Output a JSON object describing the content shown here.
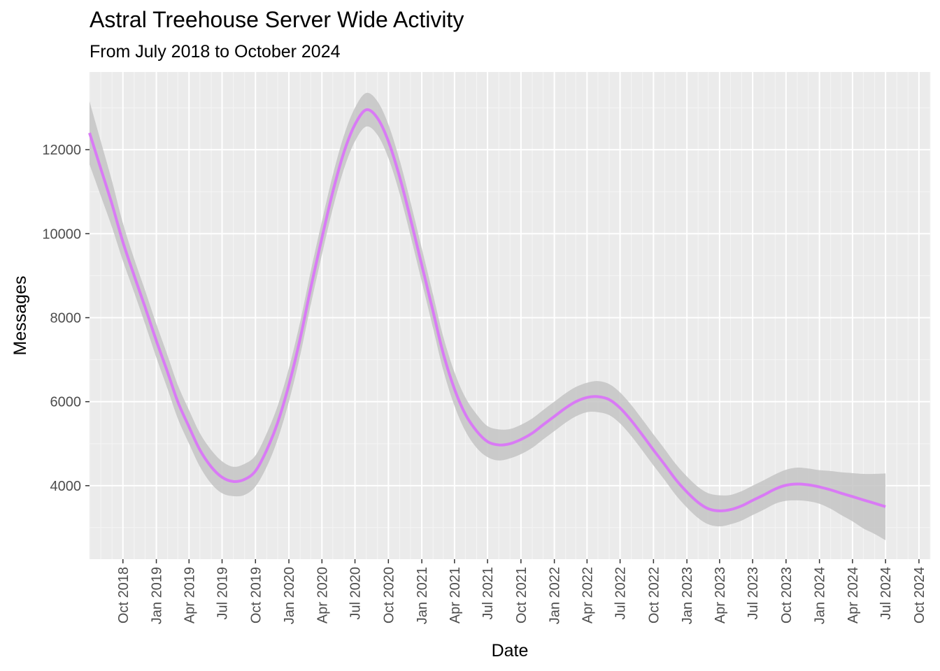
{
  "chart_data": {
    "type": "line",
    "title": "Astral Treehouse Server Wide Activity",
    "subtitle": "From July 2018 to October 2024",
    "xlabel": "Date",
    "ylabel": "Messages",
    "xlim": [
      "2018-07-01",
      "2024-11-01"
    ],
    "ylim": [
      2250,
      13850
    ],
    "grid": true,
    "legend": "none",
    "y_ticks": [
      4000,
      6000,
      8000,
      10000,
      12000
    ],
    "x_ticks": [
      {
        "date": "2018-10-01",
        "label": "Oct 2018"
      },
      {
        "date": "2019-01-01",
        "label": "Jan 2019"
      },
      {
        "date": "2019-04-01",
        "label": "Apr 2019"
      },
      {
        "date": "2019-07-01",
        "label": "Jul 2019"
      },
      {
        "date": "2019-10-01",
        "label": "Oct 2019"
      },
      {
        "date": "2020-01-01",
        "label": "Jan 2020"
      },
      {
        "date": "2020-04-01",
        "label": "Apr 2020"
      },
      {
        "date": "2020-07-01",
        "label": "Jul 2020"
      },
      {
        "date": "2020-10-01",
        "label": "Oct 2020"
      },
      {
        "date": "2021-01-01",
        "label": "Jan 2021"
      },
      {
        "date": "2021-04-01",
        "label": "Apr 2021"
      },
      {
        "date": "2021-07-01",
        "label": "Jul 2021"
      },
      {
        "date": "2021-10-01",
        "label": "Oct 2021"
      },
      {
        "date": "2022-01-01",
        "label": "Jan 2022"
      },
      {
        "date": "2022-04-01",
        "label": "Apr 2022"
      },
      {
        "date": "2022-07-01",
        "label": "Jul 2022"
      },
      {
        "date": "2022-10-01",
        "label": "Oct 2022"
      },
      {
        "date": "2023-01-01",
        "label": "Jan 2023"
      },
      {
        "date": "2023-04-01",
        "label": "Apr 2023"
      },
      {
        "date": "2023-07-01",
        "label": "Jul 2023"
      },
      {
        "date": "2023-10-01",
        "label": "Oct 2023"
      },
      {
        "date": "2024-01-01",
        "label": "Jan 2024"
      },
      {
        "date": "2024-04-01",
        "label": "Apr 2024"
      },
      {
        "date": "2024-07-01",
        "label": "Jul 2024"
      },
      {
        "date": "2024-10-01",
        "label": "Oct 2024"
      }
    ],
    "series": [
      {
        "color": "#d97af5",
        "band_color": "#c4c4c4",
        "points": [
          {
            "date": "2018-07-01",
            "y": 12400,
            "lo": 11650,
            "hi": 13150
          },
          {
            "date": "2018-08-01",
            "y": 11550,
            "lo": 10900,
            "hi": 12200
          },
          {
            "date": "2018-09-01",
            "y": 10700,
            "lo": 10150,
            "hi": 11250
          },
          {
            "date": "2018-10-01",
            "y": 9800,
            "lo": 9350,
            "hi": 10250
          },
          {
            "date": "2018-11-01",
            "y": 9000,
            "lo": 8600,
            "hi": 9400
          },
          {
            "date": "2018-12-01",
            "y": 8250,
            "lo": 7850,
            "hi": 8650
          },
          {
            "date": "2019-01-01",
            "y": 7450,
            "lo": 7050,
            "hi": 7850
          },
          {
            "date": "2019-02-01",
            "y": 6700,
            "lo": 6300,
            "hi": 7100
          },
          {
            "date": "2019-03-01",
            "y": 6000,
            "lo": 5600,
            "hi": 6400
          },
          {
            "date": "2019-04-01",
            "y": 5400,
            "lo": 5000,
            "hi": 5800
          },
          {
            "date": "2019-05-01",
            "y": 4850,
            "lo": 4450,
            "hi": 5250
          },
          {
            "date": "2019-06-01",
            "y": 4450,
            "lo": 4050,
            "hi": 4850
          },
          {
            "date": "2019-07-01",
            "y": 4200,
            "lo": 3820,
            "hi": 4580
          },
          {
            "date": "2019-08-01",
            "y": 4100,
            "lo": 3750,
            "hi": 4450
          },
          {
            "date": "2019-09-01",
            "y": 4150,
            "lo": 3780,
            "hi": 4520
          },
          {
            "date": "2019-10-01",
            "y": 4350,
            "lo": 3980,
            "hi": 4720
          },
          {
            "date": "2019-11-01",
            "y": 4850,
            "lo": 4450,
            "hi": 5250
          },
          {
            "date": "2019-12-01",
            "y": 5500,
            "lo": 5100,
            "hi": 5900
          },
          {
            "date": "2020-01-01",
            "y": 6400,
            "lo": 6000,
            "hi": 6800
          },
          {
            "date": "2020-02-01",
            "y": 7500,
            "lo": 7100,
            "hi": 7900
          },
          {
            "date": "2020-03-01",
            "y": 8700,
            "lo": 8300,
            "hi": 9100
          },
          {
            "date": "2020-04-01",
            "y": 9900,
            "lo": 9500,
            "hi": 10300
          },
          {
            "date": "2020-05-01",
            "y": 11000,
            "lo": 10600,
            "hi": 11400
          },
          {
            "date": "2020-06-01",
            "y": 11950,
            "lo": 11550,
            "hi": 12350
          },
          {
            "date": "2020-07-01",
            "y": 12600,
            "lo": 12200,
            "hi": 13000
          },
          {
            "date": "2020-08-01",
            "y": 12950,
            "lo": 12550,
            "hi": 13350
          },
          {
            "date": "2020-09-01",
            "y": 12750,
            "lo": 12350,
            "hi": 13150
          },
          {
            "date": "2020-10-01",
            "y": 12200,
            "lo": 11800,
            "hi": 12600
          },
          {
            "date": "2020-11-01",
            "y": 11350,
            "lo": 10950,
            "hi": 11750
          },
          {
            "date": "2020-12-01",
            "y": 10350,
            "lo": 9950,
            "hi": 10750
          },
          {
            "date": "2021-01-01",
            "y": 9250,
            "lo": 8850,
            "hi": 9650
          },
          {
            "date": "2021-02-01",
            "y": 8150,
            "lo": 7750,
            "hi": 8550
          },
          {
            "date": "2021-03-01",
            "y": 7150,
            "lo": 6750,
            "hi": 7550
          },
          {
            "date": "2021-04-01",
            "y": 6300,
            "lo": 5900,
            "hi": 6700
          },
          {
            "date": "2021-05-01",
            "y": 5700,
            "lo": 5300,
            "hi": 6100
          },
          {
            "date": "2021-06-01",
            "y": 5300,
            "lo": 4900,
            "hi": 5700
          },
          {
            "date": "2021-07-01",
            "y": 5050,
            "lo": 4680,
            "hi": 5420
          },
          {
            "date": "2021-08-01",
            "y": 4970,
            "lo": 4600,
            "hi": 5340
          },
          {
            "date": "2021-09-01",
            "y": 5000,
            "lo": 4650,
            "hi": 5350
          },
          {
            "date": "2021-10-01",
            "y": 5100,
            "lo": 4750,
            "hi": 5450
          },
          {
            "date": "2021-11-01",
            "y": 5250,
            "lo": 4900,
            "hi": 5600
          },
          {
            "date": "2021-12-01",
            "y": 5450,
            "lo": 5100,
            "hi": 5800
          },
          {
            "date": "2022-01-01",
            "y": 5650,
            "lo": 5300,
            "hi": 6000
          },
          {
            "date": "2022-02-01",
            "y": 5850,
            "lo": 5500,
            "hi": 6200
          },
          {
            "date": "2022-03-01",
            "y": 6000,
            "lo": 5650,
            "hi": 6350
          },
          {
            "date": "2022-04-01",
            "y": 6100,
            "lo": 5750,
            "hi": 6450
          },
          {
            "date": "2022-05-01",
            "y": 6120,
            "lo": 5750,
            "hi": 6490
          },
          {
            "date": "2022-06-01",
            "y": 6050,
            "lo": 5680,
            "hi": 6420
          },
          {
            "date": "2022-07-01",
            "y": 5850,
            "lo": 5480,
            "hi": 6220
          },
          {
            "date": "2022-08-01",
            "y": 5550,
            "lo": 5180,
            "hi": 5920
          },
          {
            "date": "2022-09-01",
            "y": 5200,
            "lo": 4830,
            "hi": 5570
          },
          {
            "date": "2022-10-01",
            "y": 4850,
            "lo": 4480,
            "hi": 5220
          },
          {
            "date": "2022-11-01",
            "y": 4500,
            "lo": 4130,
            "hi": 4870
          },
          {
            "date": "2022-12-01",
            "y": 4150,
            "lo": 3780,
            "hi": 4520
          },
          {
            "date": "2023-01-01",
            "y": 3850,
            "lo": 3480,
            "hi": 4220
          },
          {
            "date": "2023-02-01",
            "y": 3600,
            "lo": 3230,
            "hi": 3970
          },
          {
            "date": "2023-03-01",
            "y": 3450,
            "lo": 3080,
            "hi": 3820
          },
          {
            "date": "2023-04-01",
            "y": 3400,
            "lo": 3030,
            "hi": 3770
          },
          {
            "date": "2023-05-01",
            "y": 3430,
            "lo": 3080,
            "hi": 3780
          },
          {
            "date": "2023-06-01",
            "y": 3520,
            "lo": 3170,
            "hi": 3870
          },
          {
            "date": "2023-07-01",
            "y": 3650,
            "lo": 3300,
            "hi": 4000
          },
          {
            "date": "2023-08-01",
            "y": 3780,
            "lo": 3430,
            "hi": 4130
          },
          {
            "date": "2023-09-01",
            "y": 3920,
            "lo": 3570,
            "hi": 4270
          },
          {
            "date": "2023-10-01",
            "y": 4010,
            "lo": 3640,
            "hi": 4380
          },
          {
            "date": "2023-11-01",
            "y": 4040,
            "lo": 3650,
            "hi": 4430
          },
          {
            "date": "2023-12-01",
            "y": 4020,
            "lo": 3630,
            "hi": 4410
          },
          {
            "date": "2024-01-01",
            "y": 3970,
            "lo": 3570,
            "hi": 4370
          },
          {
            "date": "2024-02-01",
            "y": 3900,
            "lo": 3450,
            "hi": 4350
          },
          {
            "date": "2024-03-01",
            "y": 3820,
            "lo": 3300,
            "hi": 4320
          },
          {
            "date": "2024-04-01",
            "y": 3740,
            "lo": 3150,
            "hi": 4300
          },
          {
            "date": "2024-05-01",
            "y": 3660,
            "lo": 2980,
            "hi": 4280
          },
          {
            "date": "2024-06-01",
            "y": 3580,
            "lo": 2850,
            "hi": 4280
          },
          {
            "date": "2024-07-01",
            "y": 3500,
            "lo": 2700,
            "hi": 4290
          }
        ]
      }
    ]
  }
}
